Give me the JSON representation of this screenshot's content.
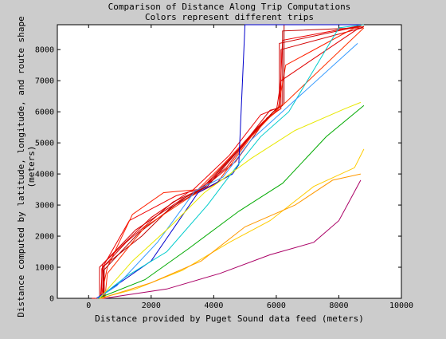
{
  "chart_data": {
    "type": "line",
    "title": "Comparison of Distance Along Trip Computations",
    "subtitle": "Colors represent different trips",
    "xlabel": "Distance provided by Puget Sound data feed (meters)",
    "ylabel": "Distance computed by latitude, longitude, and route shape (meters)",
    "xlim": [
      -1000,
      10000
    ],
    "ylim": [
      0,
      8800
    ],
    "xticks": [
      0,
      2000,
      4000,
      6000,
      8000,
      10000
    ],
    "yticks": [
      0,
      1000,
      2000,
      3000,
      4000,
      5000,
      6000,
      7000,
      8000
    ],
    "grid": false,
    "legend": "none",
    "series": [
      {
        "color": "#d40000",
        "x": [
          100,
          350,
          350,
          1500,
          3000,
          3600,
          4700,
          5700,
          6150,
          6150,
          8750,
          8800
        ],
        "y": [
          0,
          0,
          1000,
          2200,
          3200,
          3500,
          4400,
          5800,
          6100,
          8000,
          8700,
          8750
        ]
      },
      {
        "color": "#ee0000",
        "x": [
          150,
          420,
          420,
          1300,
          2800,
          3300,
          4500,
          5500,
          6100,
          6200,
          8600,
          8700
        ],
        "y": [
          0,
          0,
          950,
          2500,
          3300,
          3450,
          4600,
          5900,
          6150,
          8300,
          8750,
          8750
        ]
      },
      {
        "color": "#c00000",
        "x": [
          200,
          500,
          500,
          1700,
          2600,
          3700,
          4800,
          5900,
          6200,
          6200,
          8700,
          8800
        ],
        "y": [
          0,
          0,
          1050,
          2000,
          2900,
          3550,
          4800,
          6000,
          6200,
          8600,
          8700,
          8750
        ]
      },
      {
        "color": "#ff2000",
        "x": [
          250,
          400,
          600,
          1400,
          2400,
          3500,
          4300,
          5600,
          6050,
          6300,
          8500,
          8750
        ],
        "y": [
          0,
          50,
          1000,
          2700,
          3400,
          3500,
          4300,
          5700,
          6050,
          7500,
          8700,
          8750
        ]
      },
      {
        "color": "#b00000",
        "x": [
          300,
          480,
          480,
          1600,
          3100,
          3800,
          5000,
          6000,
          6250,
          6250,
          8800
        ],
        "y": [
          0,
          0,
          900,
          2100,
          3250,
          3600,
          5000,
          6100,
          6250,
          8800,
          8800
        ]
      },
      {
        "color": "#e00000",
        "x": [
          120,
          380,
          450,
          2000,
          3200,
          3500,
          4400,
          5400,
          6000,
          6150,
          8650
        ],
        "y": [
          0,
          0,
          1100,
          2600,
          3420,
          3480,
          4200,
          5500,
          6000,
          7000,
          8700
        ]
      },
      {
        "color": "#d00000",
        "x": [
          180,
          460,
          460,
          1200,
          2700,
          3600,
          4900,
          5800,
          6100,
          6100,
          8700
        ],
        "y": [
          0,
          0,
          1000,
          1800,
          3100,
          3520,
          4900,
          6050,
          6120,
          8200,
          8760
        ]
      },
      {
        "color": "#ff3000",
        "x": [
          220,
          520,
          600,
          1800,
          3300,
          4100,
          5200,
          6100,
          6300,
          8800
        ],
        "y": [
          0,
          0,
          800,
          2300,
          3300,
          3700,
          5200,
          6150,
          6300,
          8700
        ]
      },
      {
        "color": "#0000cc",
        "x": [
          250,
          1000,
          2000,
          3500,
          4600,
          4800,
          5000,
          5500,
          6000,
          8700
        ],
        "y": [
          0,
          500,
          1200,
          3400,
          4000,
          4300,
          8800,
          8800,
          8800,
          8800
        ]
      },
      {
        "color": "#00cccc",
        "x": [
          300,
          1200,
          2500,
          3800,
          4700,
          5500,
          6400,
          8000,
          8800
        ],
        "y": [
          0,
          700,
          1500,
          3000,
          4200,
          5200,
          6000,
          8700,
          8800
        ]
      },
      {
        "color": "#ffcc00",
        "x": [
          350,
          1500,
          3000,
          4500,
          5800,
          7200,
          8500,
          8800
        ],
        "y": [
          0,
          300,
          900,
          1800,
          2500,
          3600,
          4200,
          4800
        ]
      },
      {
        "color": "#ff9900",
        "x": [
          400,
          2000,
          3600,
          5000,
          6600,
          7800,
          8700
        ],
        "y": [
          0,
          500,
          1200,
          2300,
          3000,
          3800,
          4000
        ]
      },
      {
        "color": "#00aa00",
        "x": [
          300,
          1800,
          3200,
          4800,
          6200,
          7600,
          8800
        ],
        "y": [
          0,
          600,
          1600,
          2800,
          3700,
          5200,
          6200
        ]
      },
      {
        "color": "#3399ff",
        "x": [
          280,
          900,
          2200,
          3400,
          4300,
          5200,
          6300,
          8600
        ],
        "y": [
          0,
          400,
          1800,
          3450,
          3900,
          5100,
          6100,
          8200
        ]
      },
      {
        "color": "#aa0066",
        "x": [
          500,
          2500,
          4200,
          5800,
          7200,
          8000,
          8700
        ],
        "y": [
          0,
          300,
          800,
          1400,
          1800,
          2500,
          3800
        ]
      },
      {
        "color": "#e8e800",
        "x": [
          350,
          1400,
          2600,
          3700,
          5200,
          6600,
          8200,
          8700
        ],
        "y": [
          0,
          1200,
          2300,
          3400,
          4500,
          5400,
          6100,
          6300
        ]
      }
    ]
  }
}
